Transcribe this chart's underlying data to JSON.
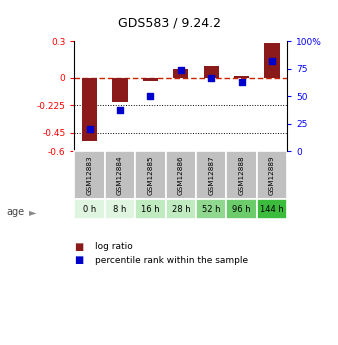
{
  "title": "GDS583 / 9.24.2",
  "samples": [
    "GSM12883",
    "GSM12884",
    "GSM12885",
    "GSM12886",
    "GSM12887",
    "GSM12888",
    "GSM12889"
  ],
  "ages": [
    "0 h",
    "8 h",
    "16 h",
    "28 h",
    "52 h",
    "96 h",
    "144 h"
  ],
  "log_ratio": [
    -0.52,
    -0.2,
    -0.025,
    0.07,
    0.1,
    0.02,
    0.285
  ],
  "percentile_rank": [
    20,
    37,
    50,
    74,
    67,
    63,
    82
  ],
  "ylim_left": [
    -0.6,
    0.3
  ],
  "yticks_left": [
    0.3,
    0,
    -0.225,
    -0.45,
    -0.6
  ],
  "ytick_labels_left": [
    "0.3",
    "0",
    "-0.225",
    "-0.45",
    "-0.6"
  ],
  "yticks_right": [
    100,
    75,
    50,
    25,
    0
  ],
  "ytick_labels_right": [
    "100%",
    "75",
    "50",
    "25",
    "0"
  ],
  "hline_dotted": [
    -0.225,
    -0.45
  ],
  "bar_color": "#8B1A1A",
  "dot_color": "#0000CD",
  "bar_width": 0.5,
  "age_colors": [
    "#e0f5e0",
    "#e0f5e0",
    "#c0eac0",
    "#c0eac0",
    "#90d890",
    "#6ccc6c",
    "#3cbc3c"
  ],
  "sample_bg_color": "#c0c0c0",
  "legend_labels": [
    "log ratio",
    "percentile rank within the sample"
  ],
  "legend_colors": [
    "#8B1A1A",
    "#0000CD"
  ]
}
